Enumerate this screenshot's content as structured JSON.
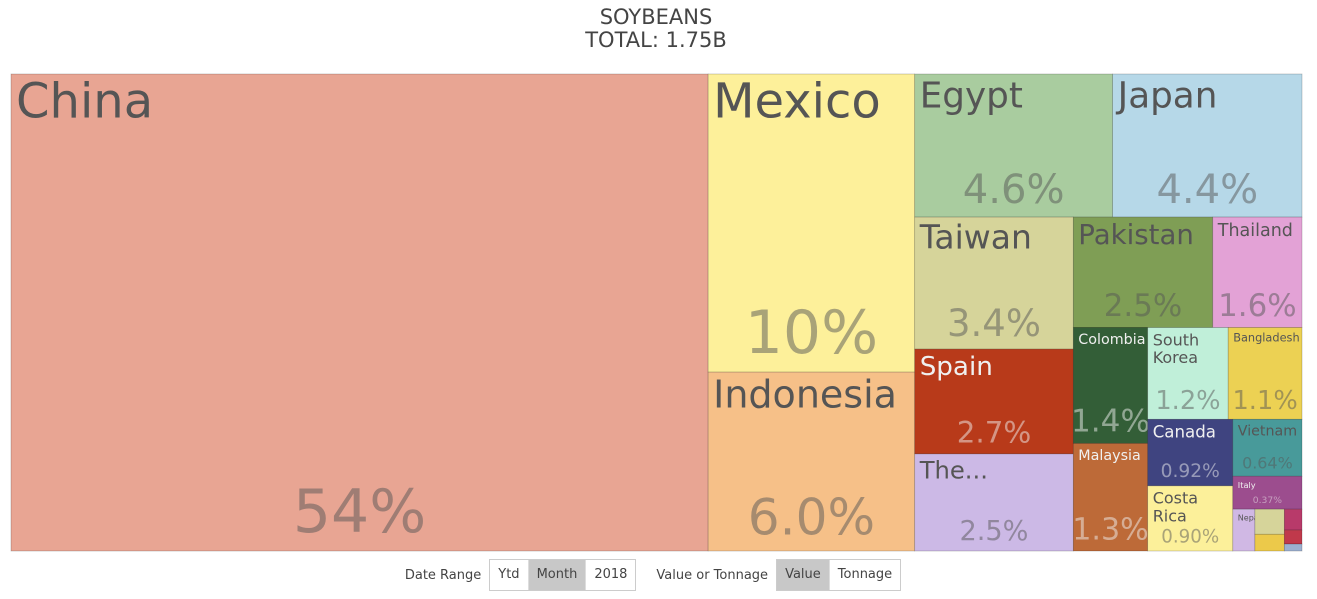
{
  "chart_data": {
    "type": "treemap",
    "title": "SOYBEANS",
    "subtitle": "TOTAL: 1.75B",
    "categories": [
      "China",
      "Mexico",
      "Indonesia",
      "Egypt",
      "Japan",
      "Taiwan",
      "Spain",
      "The...",
      "Pakistan",
      "Thailand",
      "Colombia",
      "Malaysia",
      "South Korea",
      "Bangladesh",
      "Canada",
      "Costa Rica",
      "Vietnam",
      "Italy",
      "Nepal",
      null,
      null,
      null,
      null,
      null
    ],
    "values": [
      54,
      10,
      6.0,
      4.6,
      4.4,
      3.4,
      2.7,
      2.5,
      2.5,
      1.6,
      1.4,
      1.3,
      1.2,
      1.1,
      0.92,
      0.9,
      0.64,
      0.37,
      0.15,
      0.12,
      0.08,
      0.06,
      0.04,
      0.02
    ],
    "value_labels": [
      "54%",
      "10%",
      "6.0%",
      "4.6%",
      "4.4%",
      "3.4%",
      "2.7%",
      "2.5%",
      "2.5%",
      "1.6%",
      "1.4%",
      "1.3%",
      "1.2%",
      "1.1%",
      "0.92%",
      "0.90%",
      "0.64%",
      "0.37%",
      null,
      null,
      null,
      null,
      null,
      null
    ],
    "colors": [
      "#e8a593",
      "#fdf09a",
      "#f6c088",
      "#a9cc9f",
      "#b6d8e8",
      "#d6d49a",
      "#b83a1a",
      "#ccb9e6",
      "#7f9e55",
      "#e3a2d6",
      "#335e37",
      "#bd6a38",
      "#c0efd9",
      "#ecd153",
      "#3f4480",
      "#fcf09a",
      "#489a9a",
      "#9c4d8e",
      "#d0b8e4",
      "#d6d49a",
      "#ecc94a",
      "#b83a6a",
      "#c0394b",
      "#9cb0d0"
    ]
  },
  "controls": [
    {
      "label": "Date Range",
      "options": [
        "Ytd",
        "Month",
        "2018"
      ],
      "selected": 1
    },
    {
      "label": "Value or Tonnage",
      "options": [
        "Value",
        "Tonnage"
      ],
      "selected": 0
    }
  ]
}
